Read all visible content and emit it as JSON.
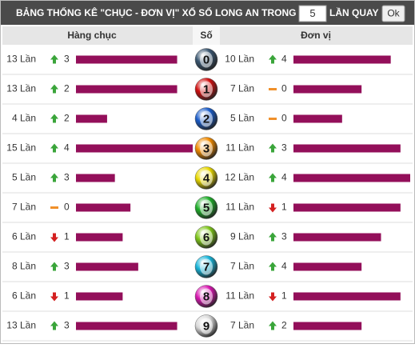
{
  "header": {
    "title": "BẢNG THỐNG KÊ \"CHỤC - ĐƠN VỊ\" XỔ SỐ LONG AN TRONG",
    "draws": 5,
    "draws_label": "LẦN QUAY",
    "button": "Ok"
  },
  "columns": [
    "Hàng chục",
    "Số",
    "Đơn vị"
  ],
  "bar_color": "#930f5a",
  "rows": [
    {
      "digit": "0",
      "ball_color": "#3a5670",
      "tens": {
        "count": 13,
        "label": "13 Lần",
        "trend": "up",
        "change": 3
      },
      "units": {
        "count": 10,
        "label": "10 Lần",
        "trend": "up",
        "change": 4
      }
    },
    {
      "digit": "1",
      "ball_color": "#d01010",
      "tens": {
        "count": 13,
        "label": "13 Lần",
        "trend": "up",
        "change": 2
      },
      "units": {
        "count": 7,
        "label": "7 Lần",
        "trend": "flat",
        "change": 0
      }
    },
    {
      "digit": "2",
      "ball_color": "#1a5cc8",
      "tens": {
        "count": 4,
        "label": "4 Lần",
        "trend": "up",
        "change": 2
      },
      "units": {
        "count": 5,
        "label": "5 Lần",
        "trend": "flat",
        "change": 0
      }
    },
    {
      "digit": "3",
      "ball_color": "#f08a00",
      "tens": {
        "count": 15,
        "label": "15 Lần",
        "trend": "up",
        "change": 4
      },
      "units": {
        "count": 11,
        "label": "11 Lần",
        "trend": "up",
        "change": 3
      }
    },
    {
      "digit": "4",
      "ball_color": "#e8d800",
      "tens": {
        "count": 5,
        "label": "5 Lần",
        "trend": "up",
        "change": 3
      },
      "units": {
        "count": 12,
        "label": "12 Lần",
        "trend": "up",
        "change": 4
      }
    },
    {
      "digit": "5",
      "ball_color": "#1fae2a",
      "tens": {
        "count": 7,
        "label": "7 Lần",
        "trend": "flat",
        "change": 0
      },
      "units": {
        "count": 11,
        "label": "11 Lần",
        "trend": "down",
        "change": 1
      }
    },
    {
      "digit": "6",
      "ball_color": "#7fc61a",
      "tens": {
        "count": 6,
        "label": "6 Lần",
        "trend": "down",
        "change": 1
      },
      "units": {
        "count": 9,
        "label": "9 Lần",
        "trend": "up",
        "change": 3
      }
    },
    {
      "digit": "7",
      "ball_color": "#17b4d8",
      "tens": {
        "count": 8,
        "label": "8 Lần",
        "trend": "up",
        "change": 3
      },
      "units": {
        "count": 7,
        "label": "7 Lần",
        "trend": "up",
        "change": 4
      }
    },
    {
      "digit": "8",
      "ball_color": "#d817b0",
      "tens": {
        "count": 6,
        "label": "6 Lần",
        "trend": "down",
        "change": 1
      },
      "units": {
        "count": 11,
        "label": "11 Lần",
        "trend": "down",
        "change": 1
      }
    },
    {
      "digit": "9",
      "ball_color": "#d8d8d8",
      "tens": {
        "count": 13,
        "label": "13 Lần",
        "trend": "up",
        "change": 3
      },
      "units": {
        "count": 7,
        "label": "7 Lần",
        "trend": "up",
        "change": 2
      }
    }
  ]
}
